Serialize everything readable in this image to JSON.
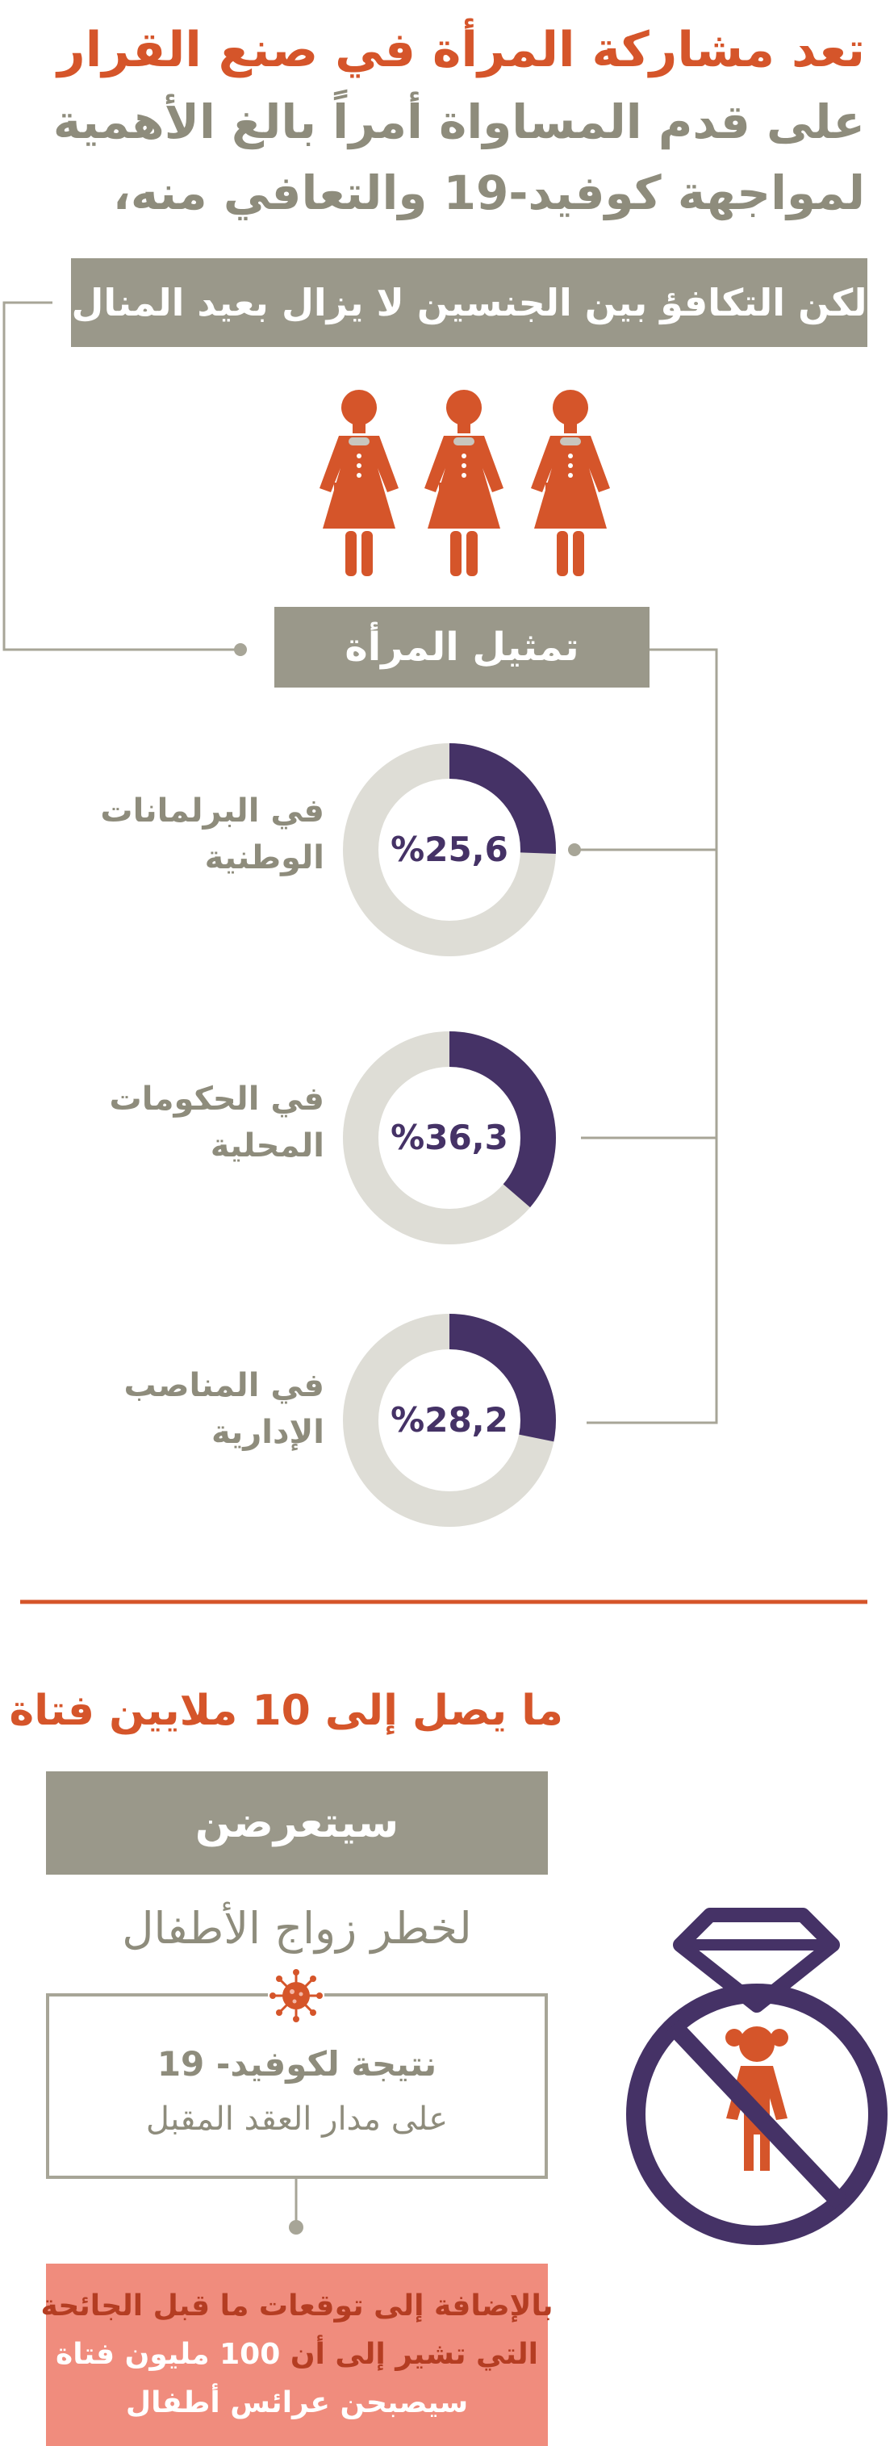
{
  "headline": {
    "line1": "تعد مشاركة المرأة في صنع القرار",
    "line2": "على قدم المساواة أمراً بالغ الأهمية",
    "line3": "لمواجهة كوفيد-19 والتعافي منه،",
    "banner": "لكن التكافؤ بين الجنسين لا يزال بعيد المنال"
  },
  "icons": {
    "women": "woman-figure-icon",
    "virus": "virus-icon",
    "ring": "ring-icon",
    "girl": "girl-icon",
    "prohibited": "prohibited-icon"
  },
  "representation": {
    "title": "تمثيل المرأة",
    "items": [
      {
        "label_line1": "في البرلمانات",
        "label_line2": "الوطنية",
        "value_text": "%25,6",
        "value": 25.6
      },
      {
        "label_line1": "في الحكومات",
        "label_line2": "المحلية",
        "value_text": "%36,3",
        "value": 36.3
      },
      {
        "label_line1": "في المناصب",
        "label_line2": "الإدارية",
        "value_text": "%28,2",
        "value": 28.2
      }
    ]
  },
  "child_marriage": {
    "reach_prefix": "ما يصل إلى ",
    "reach_number": "10",
    "reach_suffix": " ملايين فتاة",
    "face": "سيتعرضن",
    "risk": "لخطر زواج الأطفال",
    "covid_line1": "نتيجة لكوفيد- 19",
    "covid_line2": "على مدار العقد المقبل",
    "extra_line1": "بالإضافة إلى توقعات ما قبل الجائحة",
    "extra_line2_a": "التي تشير إلى أن ",
    "extra_line2_b": "100 مليون فتاة",
    "extra_line3": "سيصبحن عرائس أطفال"
  },
  "colors": {
    "orange": "#d5552a",
    "gray": "#9a988a",
    "purple": "#453266",
    "ring_gray": "#deddd6",
    "pink": "#f08c7d"
  }
}
